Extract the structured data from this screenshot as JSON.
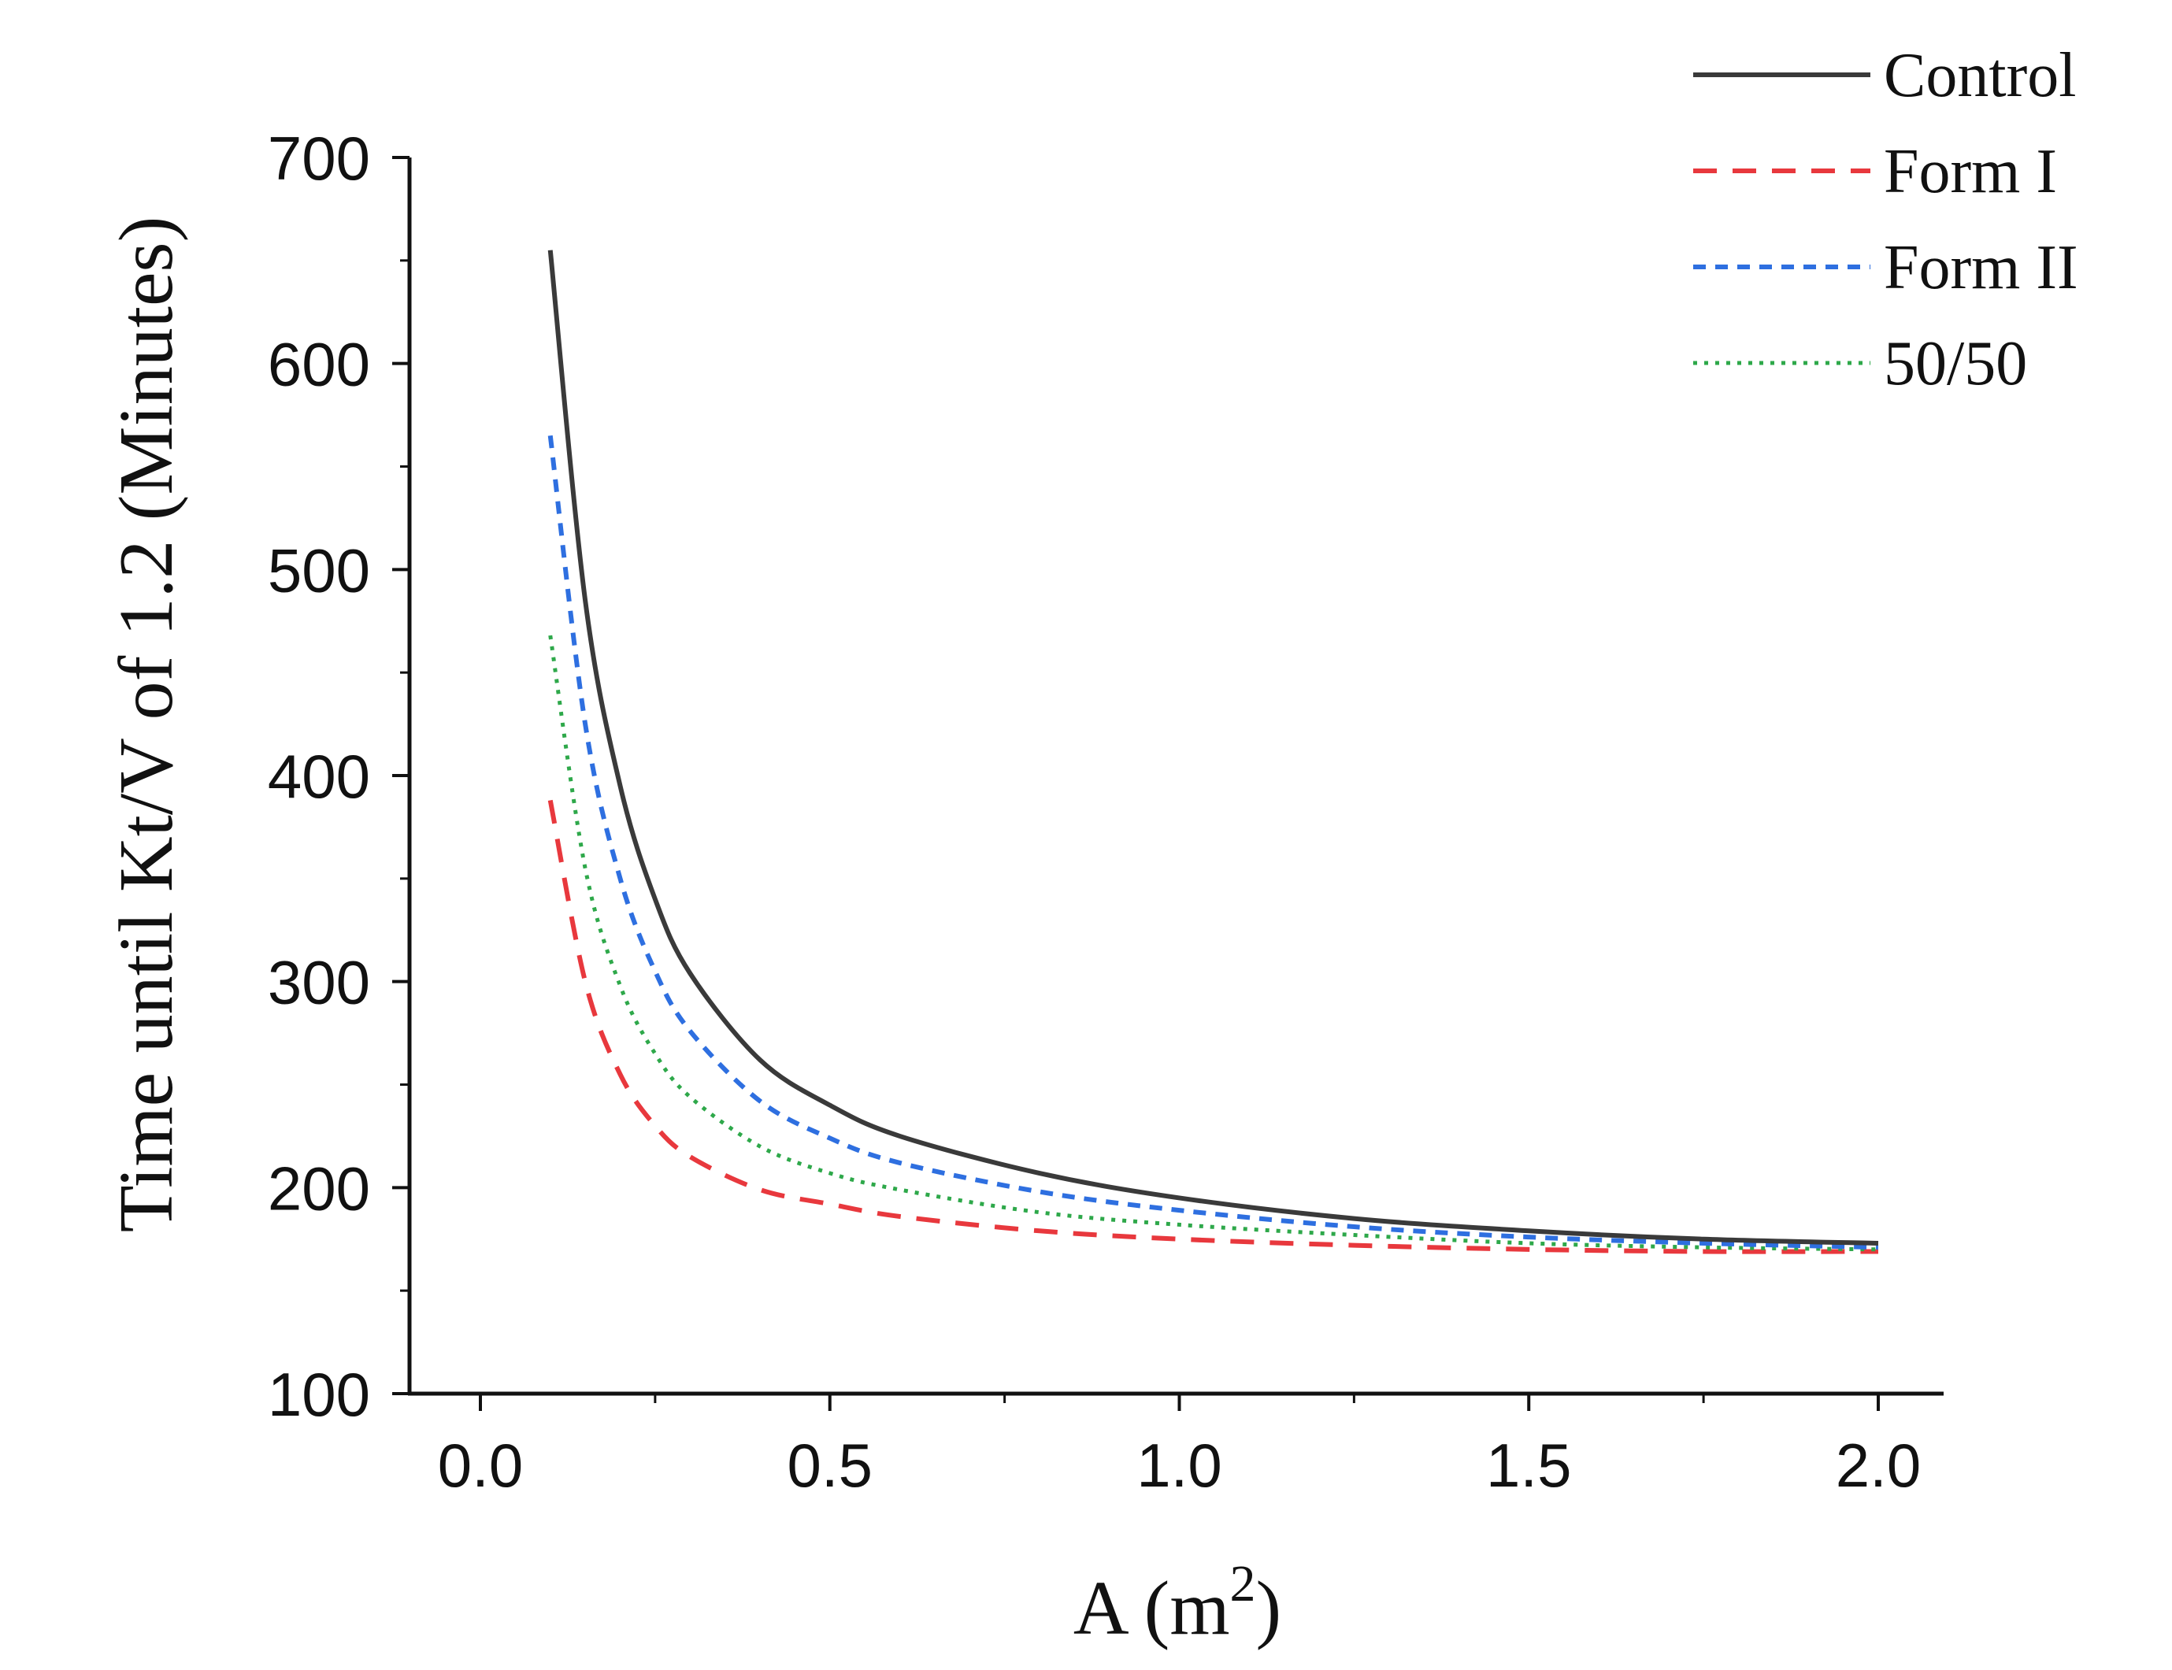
{
  "chart_data": {
    "type": "line",
    "title": "",
    "xlabel": "A (m",
    "xlabel_superscript": "2",
    "xlabel_close": ")",
    "ylabel": "Time until Kt/V of 1.2 (Minutes)",
    "xlim": [
      -0.1,
      2.1
    ],
    "ylim": [
      100,
      700
    ],
    "x_major_ticks": [
      0.0,
      0.5,
      1.0,
      1.5,
      2.0
    ],
    "x_minor_ticks": [
      0.25,
      0.75,
      1.25,
      1.75
    ],
    "x_tick_labels": [
      "0.0",
      "0.5",
      "1.0",
      "1.5",
      "2.0"
    ],
    "y_major_ticks": [
      100,
      200,
      300,
      400,
      500,
      600,
      700
    ],
    "y_minor_ticks": [
      150,
      250,
      350,
      450,
      550,
      650
    ],
    "y_tick_labels": [
      "100",
      "200",
      "300",
      "400",
      "500",
      "600",
      "700"
    ],
    "grid": false,
    "legend_position": "top-right",
    "x": [
      0.1,
      0.15,
      0.2,
      0.25,
      0.3,
      0.4,
      0.5,
      0.6,
      0.8,
      1.0,
      1.25,
      1.5,
      1.75,
      2.0
    ],
    "series": [
      {
        "name": "Control",
        "color": "#3a3a3a",
        "dash": "solid",
        "values": [
          655,
          485,
          395,
          340,
          304,
          262,
          240,
          225,
          207,
          195,
          185,
          179,
          175,
          173
        ]
      },
      {
        "name": "Form I",
        "color": "#e8383d",
        "dash": "dashed",
        "values": [
          388,
          300,
          255,
          230,
          215,
          199,
          192,
          186,
          179,
          175,
          172,
          170,
          169,
          169
        ]
      },
      {
        "name": "Form II",
        "color": "#2e6fe0",
        "dash": "short-dashed",
        "values": [
          565,
          425,
          350,
          305,
          276,
          242,
          224,
          212,
          198,
          189,
          181,
          176,
          173,
          171
        ]
      },
      {
        "name": "50/50",
        "color": "#2ea84a",
        "dash": "dotted",
        "values": [
          468,
          355,
          298,
          265,
          244,
          220,
          207,
          199,
          188,
          182,
          177,
          173,
          171,
          170
        ]
      }
    ]
  }
}
